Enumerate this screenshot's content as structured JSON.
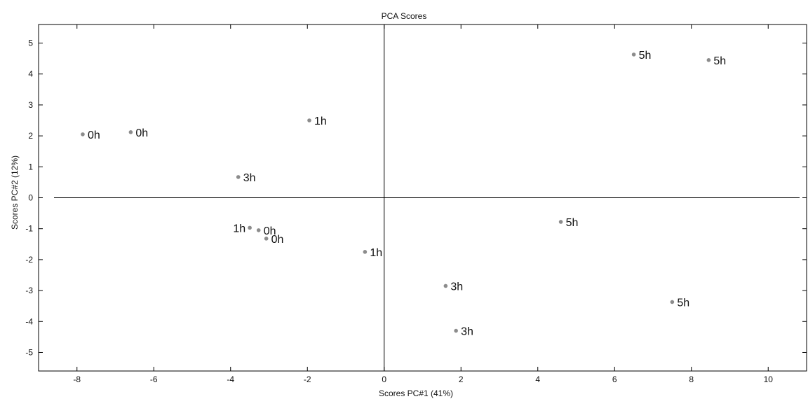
{
  "chart_data": {
    "type": "scatter",
    "title": "PCA Scores",
    "xlabel": "Scores PC#1 (41%)",
    "ylabel": "Scores PC#2 (12%)",
    "xlim": [
      -9.0,
      11.0
    ],
    "ylim": [
      -5.6,
      5.6
    ],
    "xticks": [
      -8,
      -6,
      -4,
      -2,
      0,
      2,
      4,
      6,
      8,
      10
    ],
    "yticks": [
      -5,
      -4,
      -3,
      -2,
      -1,
      0,
      1,
      2,
      3,
      4,
      5
    ],
    "grid": false,
    "point_color": "#8c8c8c",
    "points": [
      {
        "x": -7.85,
        "y": 2.05,
        "label": "0h"
      },
      {
        "x": -6.6,
        "y": 2.12,
        "label": "0h"
      },
      {
        "x": -3.27,
        "y": -1.05,
        "label": "0h"
      },
      {
        "x": -3.07,
        "y": -1.32,
        "label": "0h"
      },
      {
        "x": -1.95,
        "y": 2.5,
        "label": "1h"
      },
      {
        "x": -3.5,
        "y": -0.97,
        "label": "1h"
      },
      {
        "x": -0.5,
        "y": -1.75,
        "label": "1h"
      },
      {
        "x": -3.8,
        "y": 0.67,
        "label": "3h"
      },
      {
        "x": 1.6,
        "y": -2.85,
        "label": "3h"
      },
      {
        "x": 1.87,
        "y": -4.3,
        "label": "3h"
      },
      {
        "x": 6.5,
        "y": 4.63,
        "label": "5h"
      },
      {
        "x": 8.45,
        "y": 4.45,
        "label": "5h"
      },
      {
        "x": 4.6,
        "y": -0.78,
        "label": "5h"
      },
      {
        "x": 7.5,
        "y": -3.37,
        "label": "5h"
      }
    ]
  }
}
